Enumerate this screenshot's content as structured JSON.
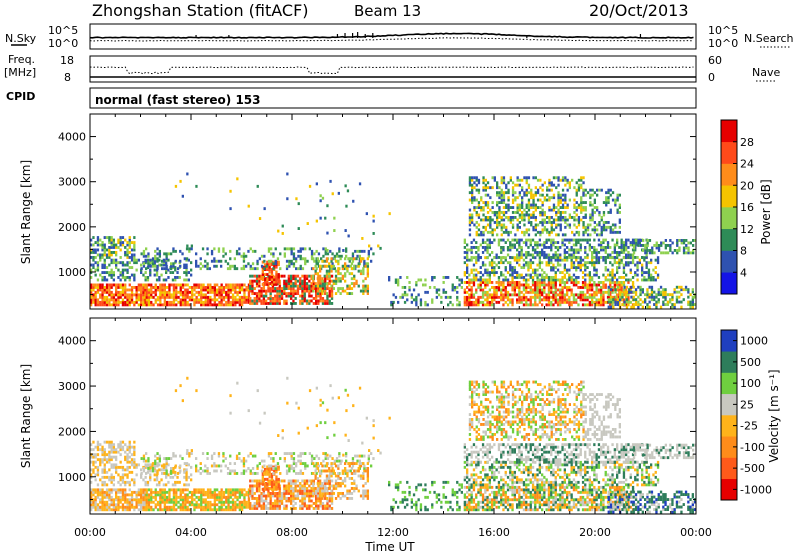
{
  "header": {
    "station": "Zhongshan Station (fitACF)",
    "beam": "Beam 13",
    "date": "20/Oct/2013"
  },
  "nsky_panel": {
    "left_label": "N.Sky",
    "right_label": "N.Search",
    "left_ticks": [
      "10^5",
      "10^0"
    ],
    "right_ticks": [
      "10^5",
      "10^0"
    ]
  },
  "freq_panel": {
    "left_label_1": "Freq.",
    "left_label_2": "[MHz]",
    "right_label": "Nave",
    "left_ticks": [
      "18",
      "8"
    ],
    "right_ticks": [
      "60",
      "0"
    ]
  },
  "cpid": {
    "label": "CPID",
    "text": "normal (fast stereo) 153"
  },
  "x_axis": {
    "label": "Time UT",
    "ticks": [
      "00:00",
      "04:00",
      "08:00",
      "12:00",
      "16:00",
      "20:00",
      "00:00"
    ]
  },
  "range_axis": {
    "label": "Slant Range [km]",
    "ticks": [
      "1000",
      "2000",
      "3000",
      "4000"
    ]
  },
  "power_scale": {
    "label": "Power [dB]",
    "ticks": [
      "4",
      "8",
      "12",
      "16",
      "20",
      "24",
      "28"
    ],
    "colors": [
      "#1414e6",
      "#2f52b0",
      "#2e8b57",
      "#8fd14f",
      "#f5c400",
      "#ff8c1a",
      "#ff4a1a",
      "#e60000"
    ]
  },
  "velocity_scale": {
    "label": "Velocity [m s⁻¹]",
    "ticks": [
      "1000",
      "500",
      "100",
      "25",
      "-25",
      "-100",
      "-500",
      "-1000"
    ],
    "colors": [
      "#1f3fbf",
      "#2e7d5b",
      "#6fcf3f",
      "#c8c8c0",
      "#ffb31a",
      "#ff8c1a",
      "#ff5a1a",
      "#e60000"
    ]
  },
  "chart_data": [
    {
      "type": "heatmap",
      "name": "Power",
      "x_range_hours": [
        0,
        24
      ],
      "y_range_km": [
        180,
        4500
      ],
      "colorbar_label": "Power [dB]",
      "colorbar_range": [
        0,
        32
      ],
      "colorbar_ticks": [
        4,
        8,
        12,
        16,
        20,
        24,
        28
      ]
    },
    {
      "type": "heatmap",
      "name": "Velocity",
      "x_range_hours": [
        0,
        24
      ],
      "y_range_km": [
        180,
        4500
      ],
      "colorbar_label": "Velocity [m s-1]",
      "colorbar_ticks": [
        1000,
        500,
        100,
        25,
        -25,
        -100,
        -500,
        -1000
      ]
    }
  ]
}
